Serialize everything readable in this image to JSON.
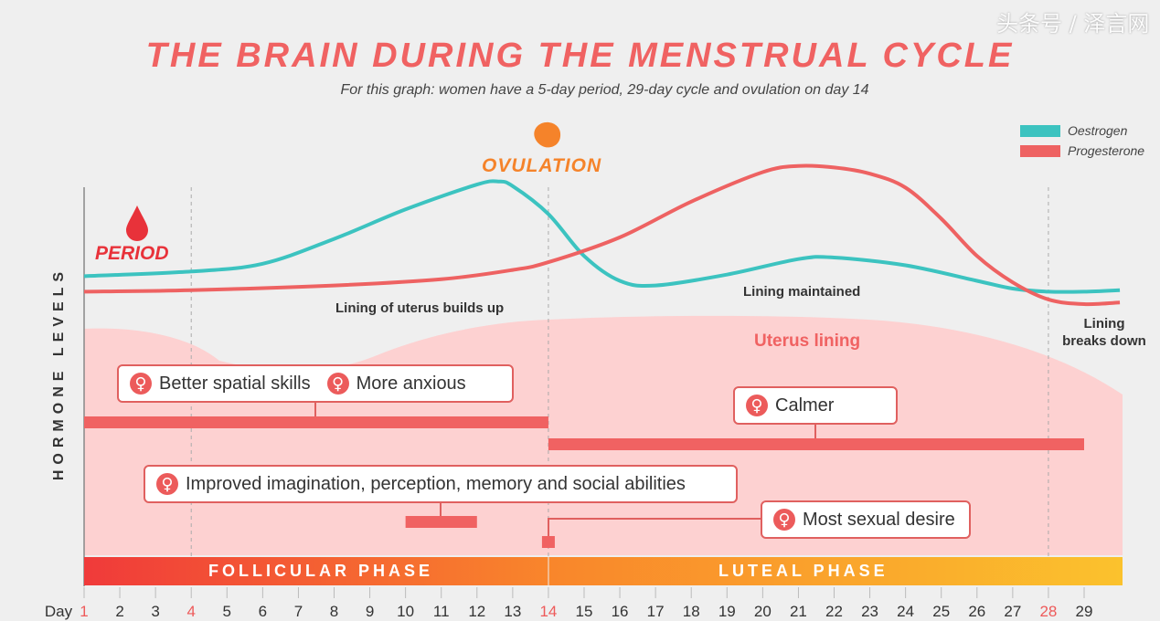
{
  "header": {
    "title": "THE BRAIN DURING THE MENSTRUAL CYCLE",
    "subtitle": "For this graph: women have a 5-day period, 29-day cycle and ovulation on day 14"
  },
  "annotations": {
    "period": "PERIOD",
    "ovulation": "OVULATION",
    "lining_builds": "Lining of uterus builds up",
    "lining_maintained": "Lining maintained",
    "lining_breaks_1": "Lining",
    "lining_breaks_2": "breaks down",
    "uterus_lining": "Uterus lining",
    "watermark": "头条号 / 泽言网"
  },
  "effects": {
    "better_spatial": "Better spatial skills",
    "more_anxious": "More anxious",
    "calmer": "Calmer",
    "improved": "Improved imagination, perception, memory and social abilities",
    "sexual_desire": "Most sexual desire"
  },
  "phases": {
    "follicular": "FOLLICULAR PHASE",
    "luteal": "LUTEAL PHASE"
  },
  "colors": {
    "oestrogen": "#3cc3c0",
    "progesterone": "#ee6262",
    "title": "#f06262",
    "ovulation": "#f5832a",
    "period": "#e8323a"
  },
  "chart_data": {
    "type": "line",
    "title": "THE BRAIN DURING THE MENSTRUAL CYCLE",
    "xlabel": "Day",
    "ylabel": "HORMONE LEVELS",
    "xlim": [
      1,
      30
    ],
    "ylim": [
      0,
      100
    ],
    "highlight_days": [
      1,
      4,
      14,
      28
    ],
    "x_ticks": [
      1,
      2,
      3,
      4,
      5,
      6,
      7,
      8,
      9,
      10,
      11,
      12,
      13,
      14,
      15,
      16,
      17,
      18,
      19,
      20,
      21,
      22,
      23,
      24,
      25,
      26,
      27,
      28,
      29
    ],
    "legend": [
      "Oestrogen",
      "Progesterone"
    ],
    "legend_position": "top-right",
    "series": [
      {
        "name": "Oestrogen",
        "x": [
          1,
          4,
          6,
          8,
          10,
          12,
          12.6,
          13,
          14,
          15,
          16,
          17,
          19,
          21,
          22,
          24,
          26,
          27,
          28,
          29,
          30
        ],
        "y": [
          28,
          31,
          36,
          52,
          71,
          87,
          89,
          86,
          68,
          41,
          25,
          22,
          29,
          39,
          40,
          35,
          25,
          20,
          18,
          18,
          19
        ]
      },
      {
        "name": "Progesterone",
        "x": [
          1,
          4,
          8,
          11,
          13,
          14,
          16,
          18,
          20,
          21,
          22,
          23,
          24,
          25,
          26,
          27,
          28,
          29,
          30
        ],
        "y": [
          18,
          19,
          22,
          26,
          32,
          37,
          53,
          76,
          95,
          99,
          98,
          94,
          85,
          65,
          41,
          24,
          13,
          10,
          11
        ]
      }
    ],
    "effect_bars": [
      {
        "label": "Better spatial skills / More anxious",
        "start_day": 1,
        "end_day": 14
      },
      {
        "label": "Calmer",
        "start_day": 14,
        "end_day": 29
      },
      {
        "label": "Improved imagination, perception, memory and social abilities",
        "start_day": 10,
        "end_day": 12
      },
      {
        "label": "Most sexual desire",
        "start_day": 14,
        "end_day": 14
      }
    ]
  }
}
